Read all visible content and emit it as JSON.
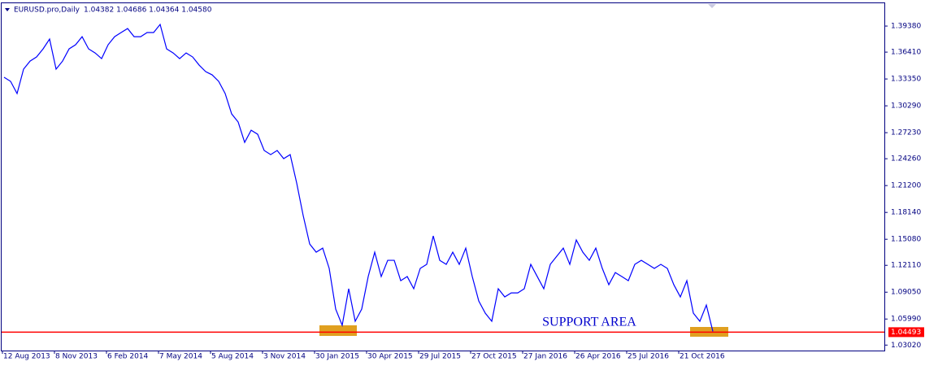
{
  "chart_data": {
    "type": "line",
    "title": "EURUSD.pro,Daily",
    "subtitle": "1.04382 1.04686 1.04364 1.04580",
    "annotation": "SUPPORT AREA",
    "price_line": 1.04493,
    "price_line_color": "#ff0000",
    "grid": false,
    "categories": [
      "12 Aug 2013",
      null,
      null,
      null,
      null,
      null,
      null,
      null,
      "8 Nov 2013",
      null,
      null,
      null,
      null,
      null,
      null,
      null,
      "6 Feb 2014",
      null,
      null,
      null,
      null,
      null,
      null,
      null,
      "7 May 2014",
      null,
      null,
      null,
      null,
      null,
      null,
      null,
      "5 Aug 2014",
      null,
      null,
      null,
      null,
      null,
      null,
      null,
      "3 Nov 2014",
      null,
      null,
      null,
      null,
      null,
      null,
      null,
      "30 Jan 2015",
      null,
      null,
      null,
      null,
      null,
      null,
      null,
      "30 Apr 2015",
      null,
      null,
      null,
      null,
      null,
      null,
      null,
      "29 Jul 2015",
      null,
      null,
      null,
      null,
      null,
      null,
      null,
      "27 Oct 2015",
      null,
      null,
      null,
      null,
      null,
      null,
      null,
      "27 Jan 2016",
      null,
      null,
      null,
      null,
      null,
      null,
      null,
      "26 Apr 2016",
      null,
      null,
      null,
      null,
      null,
      null,
      null,
      "25 Jul 2016",
      null,
      null,
      null,
      null,
      null,
      null,
      null,
      "21 Oct 2016",
      null,
      null,
      null,
      null,
      null
    ],
    "series": [
      {
        "name": "EURUSD.pro",
        "color": "#0000ff",
        "values": [
          1.3354,
          1.3308,
          1.3169,
          1.3447,
          1.3539,
          1.3586,
          1.3678,
          1.379,
          1.3447,
          1.3539,
          1.3678,
          1.3725,
          1.3817,
          1.3678,
          1.3632,
          1.3567,
          1.3725,
          1.3817,
          1.3864,
          1.391,
          1.3817,
          1.3817,
          1.3864,
          1.3864,
          1.3957,
          1.3678,
          1.3632,
          1.3567,
          1.3632,
          1.3586,
          1.3493,
          1.3419,
          1.3382,
          1.3308,
          1.3169,
          1.2937,
          1.2844,
          1.2612,
          1.2751,
          1.2705,
          1.252,
          1.2473,
          1.252,
          1.2427,
          1.2473,
          1.2149,
          1.1778,
          1.1454,
          1.1361,
          1.1407,
          1.1176,
          1.0712,
          1.0527,
          1.0944,
          1.0573,
          1.0712,
          1.1083,
          1.1361,
          1.1083,
          1.1268,
          1.1268,
          1.1036,
          1.1083,
          1.0944,
          1.1176,
          1.1222,
          1.1546,
          1.1268,
          1.1222,
          1.1361,
          1.1222,
          1.1407,
          1.1083,
          1.0805,
          1.0666,
          1.0573,
          1.0944,
          1.0851,
          1.0897,
          1.0897,
          1.0944,
          1.1222,
          1.1083,
          1.0944,
          1.1222,
          1.1315,
          1.1407,
          1.1222,
          1.15,
          1.1361,
          1.1268,
          1.1407,
          1.1176,
          1.099,
          1.1129,
          1.1083,
          1.1036,
          1.1222,
          1.1268,
          1.1222,
          1.1176,
          1.1222,
          1.1176,
          1.099,
          1.0851,
          1.1036,
          1.0666,
          1.0573,
          1.0758,
          1.0458
        ]
      }
    ],
    "ylim": [
      1.0249,
      1.4198
    ],
    "yticks": [
      {
        "value": 1.3938,
        "label": "1.39380"
      },
      {
        "value": 1.3641,
        "label": "1.36410"
      },
      {
        "value": 1.3335,
        "label": "1.33350"
      },
      {
        "value": 1.3029,
        "label": "1.30290"
      },
      {
        "value": 1.2723,
        "label": "1.27230"
      },
      {
        "value": 1.2426,
        "label": "1.24260"
      },
      {
        "value": 1.212,
        "label": "1.21200"
      },
      {
        "value": 1.1814,
        "label": "1.18140"
      },
      {
        "value": 1.1508,
        "label": "1.15080"
      },
      {
        "value": 1.1211,
        "label": "1.12110"
      },
      {
        "value": 1.0905,
        "label": "1.09050"
      },
      {
        "value": 1.0599,
        "label": "1.05990"
      },
      {
        "value": 1.0302,
        "label": "1.03020"
      }
    ]
  }
}
